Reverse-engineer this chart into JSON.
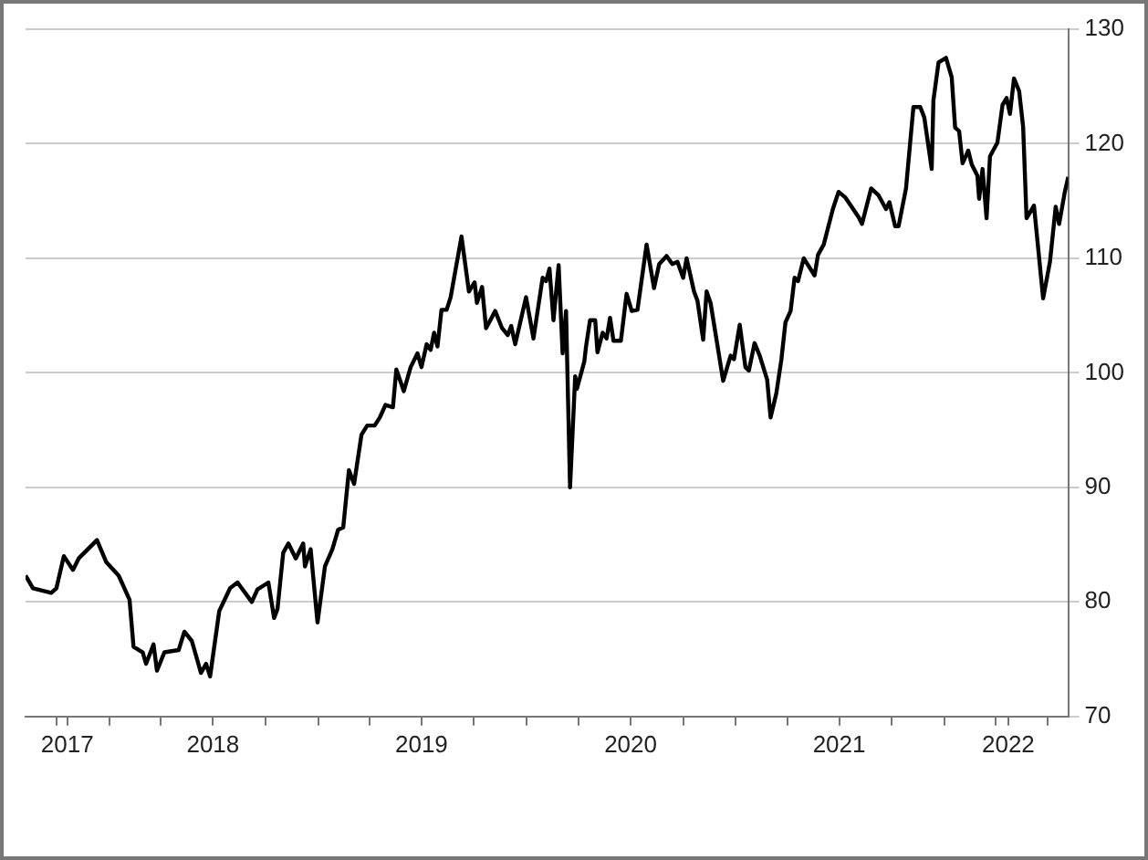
{
  "chart_data": {
    "type": "line",
    "color": "#000000",
    "marker": "none",
    "line_style": "solid",
    "grid": "y",
    "legend": false,
    "xlim": [
      "2017-08-07",
      "2022-08-06"
    ],
    "xticks": [
      {
        "value": "2017-10-01",
        "label": null
      },
      {
        "value": "2017-10-19",
        "label": "2017"
      },
      {
        "value": "2018-01-01",
        "label": null
      },
      {
        "value": "2018-04-01",
        "label": null
      },
      {
        "value": "2018-07-01",
        "label": "2018"
      },
      {
        "value": "2018-10-01",
        "label": null
      },
      {
        "value": "2019-01-01",
        "label": null
      },
      {
        "value": "2019-04-01",
        "label": null
      },
      {
        "value": "2019-07-01",
        "label": "2019"
      },
      {
        "value": "2019-10-01",
        "label": null
      },
      {
        "value": "2020-01-01",
        "label": null
      },
      {
        "value": "2020-04-01",
        "label": null
      },
      {
        "value": "2020-07-01",
        "label": "2020"
      },
      {
        "value": "2020-10-01",
        "label": null
      },
      {
        "value": "2021-01-01",
        "label": null
      },
      {
        "value": "2021-04-01",
        "label": null
      },
      {
        "value": "2021-07-01",
        "label": "2021"
      },
      {
        "value": "2021-10-01",
        "label": null
      },
      {
        "value": "2022-01-01",
        "label": null
      },
      {
        "value": "2022-04-01",
        "label": null
      },
      {
        "value": "2022-04-23",
        "label": "2022"
      },
      {
        "value": "2022-07-01",
        "label": null
      }
    ],
    "ylim": [
      70,
      130
    ],
    "yticks": [
      70,
      80,
      90,
      100,
      110,
      120,
      130
    ],
    "x": [
      "2017-08-07",
      "2017-08-20",
      "2017-09-21",
      "2017-09-30",
      "2017-10-13",
      "2017-10-29",
      "2017-11-08",
      "2017-12-10",
      "2017-12-26",
      "2018-01-17",
      "2018-02-05",
      "2018-02-12",
      "2018-02-28",
      "2018-03-06",
      "2018-03-19",
      "2018-03-25",
      "2018-04-07",
      "2018-05-02",
      "2018-05-12",
      "2018-05-25",
      "2018-06-10",
      "2018-06-19",
      "2018-06-26",
      "2018-07-12",
      "2018-07-31",
      "2018-08-13",
      "2018-09-07",
      "2018-09-17",
      "2018-10-06",
      "2018-10-16",
      "2018-10-22",
      "2018-11-01",
      "2018-11-10",
      "2018-11-23",
      "2018-12-06",
      "2018-12-09",
      "2018-12-19",
      "2018-12-31",
      "2019-01-13",
      "2019-01-26",
      "2019-02-05",
      "2019-02-14",
      "2019-02-24",
      "2019-03-05",
      "2019-03-18",
      "2019-03-28",
      "2019-04-10",
      "2019-04-19",
      "2019-04-29",
      "2019-05-12",
      "2019-05-18",
      "2019-05-31",
      "2019-06-12",
      "2019-06-24",
      "2019-07-01",
      "2019-07-10",
      "2019-07-17",
      "2019-07-23",
      "2019-07-29",
      "2019-08-05",
      "2019-08-14",
      "2019-08-21",
      "2019-09-09",
      "2019-09-22",
      "2019-10-02",
      "2019-10-06",
      "2019-10-15",
      "2019-10-22",
      "2019-11-07",
      "2019-11-19",
      "2019-11-29",
      "2019-12-05",
      "2019-12-12",
      "2019-12-31",
      "2020-01-13",
      "2020-01-29",
      "2020-02-04",
      "2020-02-10",
      "2020-02-17",
      "2020-02-26",
      "2020-03-04",
      "2020-03-10",
      "2020-03-17",
      "2020-03-26",
      "2020-03-29",
      "2020-04-11",
      "2020-04-14",
      "2020-04-21",
      "2020-04-30",
      "2020-05-04",
      "2020-05-13",
      "2020-05-20",
      "2020-05-26",
      "2020-06-01",
      "2020-06-14",
      "2020-06-24",
      "2020-07-03",
      "2020-07-13",
      "2020-07-29",
      "2020-08-11",
      "2020-08-20",
      "2020-09-02",
      "2020-09-12",
      "2020-09-21",
      "2020-10-01",
      "2020-10-07",
      "2020-10-20",
      "2020-10-26",
      "2020-11-05",
      "2020-11-11",
      "2020-11-18",
      "2020-12-10",
      "2020-12-23",
      "2020-12-29",
      "2021-01-08",
      "2021-01-18",
      "2021-01-24",
      "2021-02-03",
      "2021-02-12",
      "2021-02-25",
      "2021-03-03",
      "2021-03-13",
      "2021-03-22",
      "2021-03-29",
      "2021-04-07",
      "2021-04-14",
      "2021-04-20",
      "2021-04-30",
      "2021-05-19",
      "2021-05-25",
      "2021-06-04",
      "2021-06-20",
      "2021-06-30",
      "2021-07-12",
      "2021-08-04",
      "2021-08-10",
      "2021-08-26",
      "2021-09-08",
      "2021-09-21",
      "2021-09-27",
      "2021-10-07",
      "2021-10-13",
      "2021-10-26",
      "2021-11-08",
      "2021-11-20",
      "2021-11-27",
      "2021-12-10",
      "2021-12-13",
      "2021-12-22",
      "2022-01-04",
      "2022-01-14",
      "2022-01-20",
      "2022-01-27",
      "2022-02-02",
      "2022-02-12",
      "2022-02-18",
      "2022-02-28",
      "2022-03-03",
      "2022-03-09",
      "2022-03-16",
      "2022-03-22",
      "2022-04-04",
      "2022-04-13",
      "2022-04-20",
      "2022-04-26",
      "2022-05-03",
      "2022-05-12",
      "2022-05-19",
      "2022-05-25",
      "2022-06-07",
      "2022-06-23",
      "2022-07-05",
      "2022-07-15",
      "2022-07-21",
      "2022-07-31",
      "2022-08-06"
    ],
    "values": [
      82.3,
      81.2,
      80.8,
      81.2,
      84.0,
      82.8,
      83.8,
      85.4,
      83.5,
      82.3,
      80.2,
      76.1,
      75.6,
      74.6,
      76.3,
      74.0,
      75.6,
      75.8,
      77.4,
      76.6,
      73.8,
      74.6,
      73.5,
      79.2,
      81.2,
      81.7,
      80.0,
      81.1,
      81.7,
      78.6,
      79.4,
      84.3,
      85.1,
      83.8,
      85.1,
      83.1,
      84.6,
      78.2,
      83.1,
      84.6,
      86.3,
      86.5,
      91.5,
      90.3,
      94.6,
      95.4,
      95.4,
      96.1,
      97.2,
      97.0,
      100.3,
      98.4,
      100.5,
      101.7,
      100.5,
      102.5,
      102.0,
      103.5,
      102.3,
      105.5,
      105.5,
      106.6,
      111.9,
      107.1,
      107.9,
      106.1,
      107.5,
      103.9,
      105.4,
      103.9,
      103.3,
      104.1,
      102.5,
      106.6,
      103.0,
      108.3,
      108.0,
      109.1,
      104.6,
      109.4,
      101.7,
      105.4,
      90.0,
      99.7,
      98.6,
      101.0,
      102.3,
      104.6,
      104.6,
      101.8,
      103.5,
      103.0,
      104.8,
      102.8,
      102.8,
      106.9,
      105.4,
      105.5,
      111.2,
      107.4,
      109.5,
      110.2,
      109.5,
      109.7,
      108.3,
      110.0,
      107.1,
      106.3,
      102.9,
      107.1,
      106.1,
      99.3,
      101.5,
      101.2,
      104.2,
      100.5,
      100.2,
      102.6,
      101.5,
      99.4,
      96.1,
      98.2,
      101.2,
      104.4,
      105.4,
      108.3,
      108.0,
      110.0,
      108.5,
      110.3,
      111.2,
      114.3,
      115.8,
      115.3,
      113.6,
      113.0,
      116.1,
      115.5,
      114.3,
      114.9,
      112.8,
      112.8,
      116.1,
      123.2,
      123.2,
      122.3,
      117.8,
      123.8,
      127.1,
      127.5,
      125.8,
      121.4,
      121.1,
      118.3,
      119.4,
      118.2,
      117.2,
      115.2,
      117.8,
      113.5,
      118.9,
      120.1,
      123.4,
      124.0,
      122.6,
      125.7,
      124.6,
      121.5,
      113.5,
      114.6,
      106.5,
      109.7,
      114.5,
      113.0,
      115.8,
      117.1
    ]
  }
}
